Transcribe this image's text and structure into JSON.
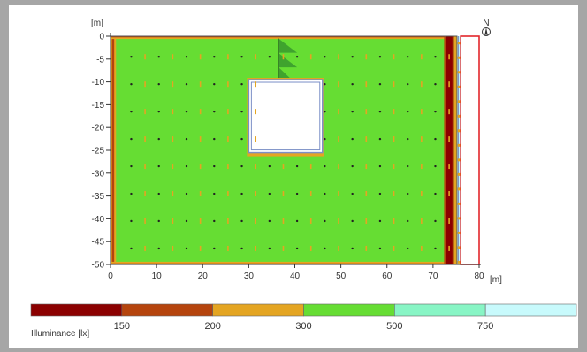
{
  "chart_data": {
    "type": "heatmap",
    "title": "",
    "x_axis": {
      "unit_label": "[m]",
      "ticks": [
        0,
        10,
        20,
        30,
        40,
        50,
        60,
        70,
        80
      ],
      "range": [
        0,
        80
      ]
    },
    "y_axis": {
      "unit_label": "[m]",
      "ticks": [
        0,
        -5,
        -10,
        -15,
        -20,
        -25,
        -30,
        -35,
        -40,
        -45,
        -50
      ],
      "tick_labels": [
        "0",
        "-5",
        "-10",
        "-15",
        "-20",
        "-25",
        "-30",
        "-35",
        "-40",
        "-45",
        "-50"
      ],
      "range": [
        -50,
        0
      ]
    },
    "plan": {
      "floor": {
        "x": [
          0,
          75
        ],
        "y": [
          -50,
          0
        ]
      },
      "void": {
        "x": [
          30,
          46
        ],
        "y": [
          -25.5,
          -9.5
        ]
      },
      "annex": {
        "x": [
          76,
          80
        ],
        "y": [
          -50,
          0
        ]
      }
    },
    "legend": {
      "label": "Illuminance [lx]",
      "bands": [
        {
          "max": 150,
          "color": "#8b0000"
        },
        {
          "min": 150,
          "max": 200,
          "color": "#b5440d"
        },
        {
          "min": 200,
          "max": 300,
          "color": "#e4a522"
        },
        {
          "min": 300,
          "max": 500,
          "color": "#66dd33"
        },
        {
          "min": 500,
          "max": 750,
          "color": "#88f5c5"
        },
        {
          "min": 750,
          "color": "#c8fafc"
        }
      ],
      "tick_labels": [
        "150",
        "200",
        "300",
        "500",
        "750"
      ]
    },
    "north_label": "N"
  }
}
